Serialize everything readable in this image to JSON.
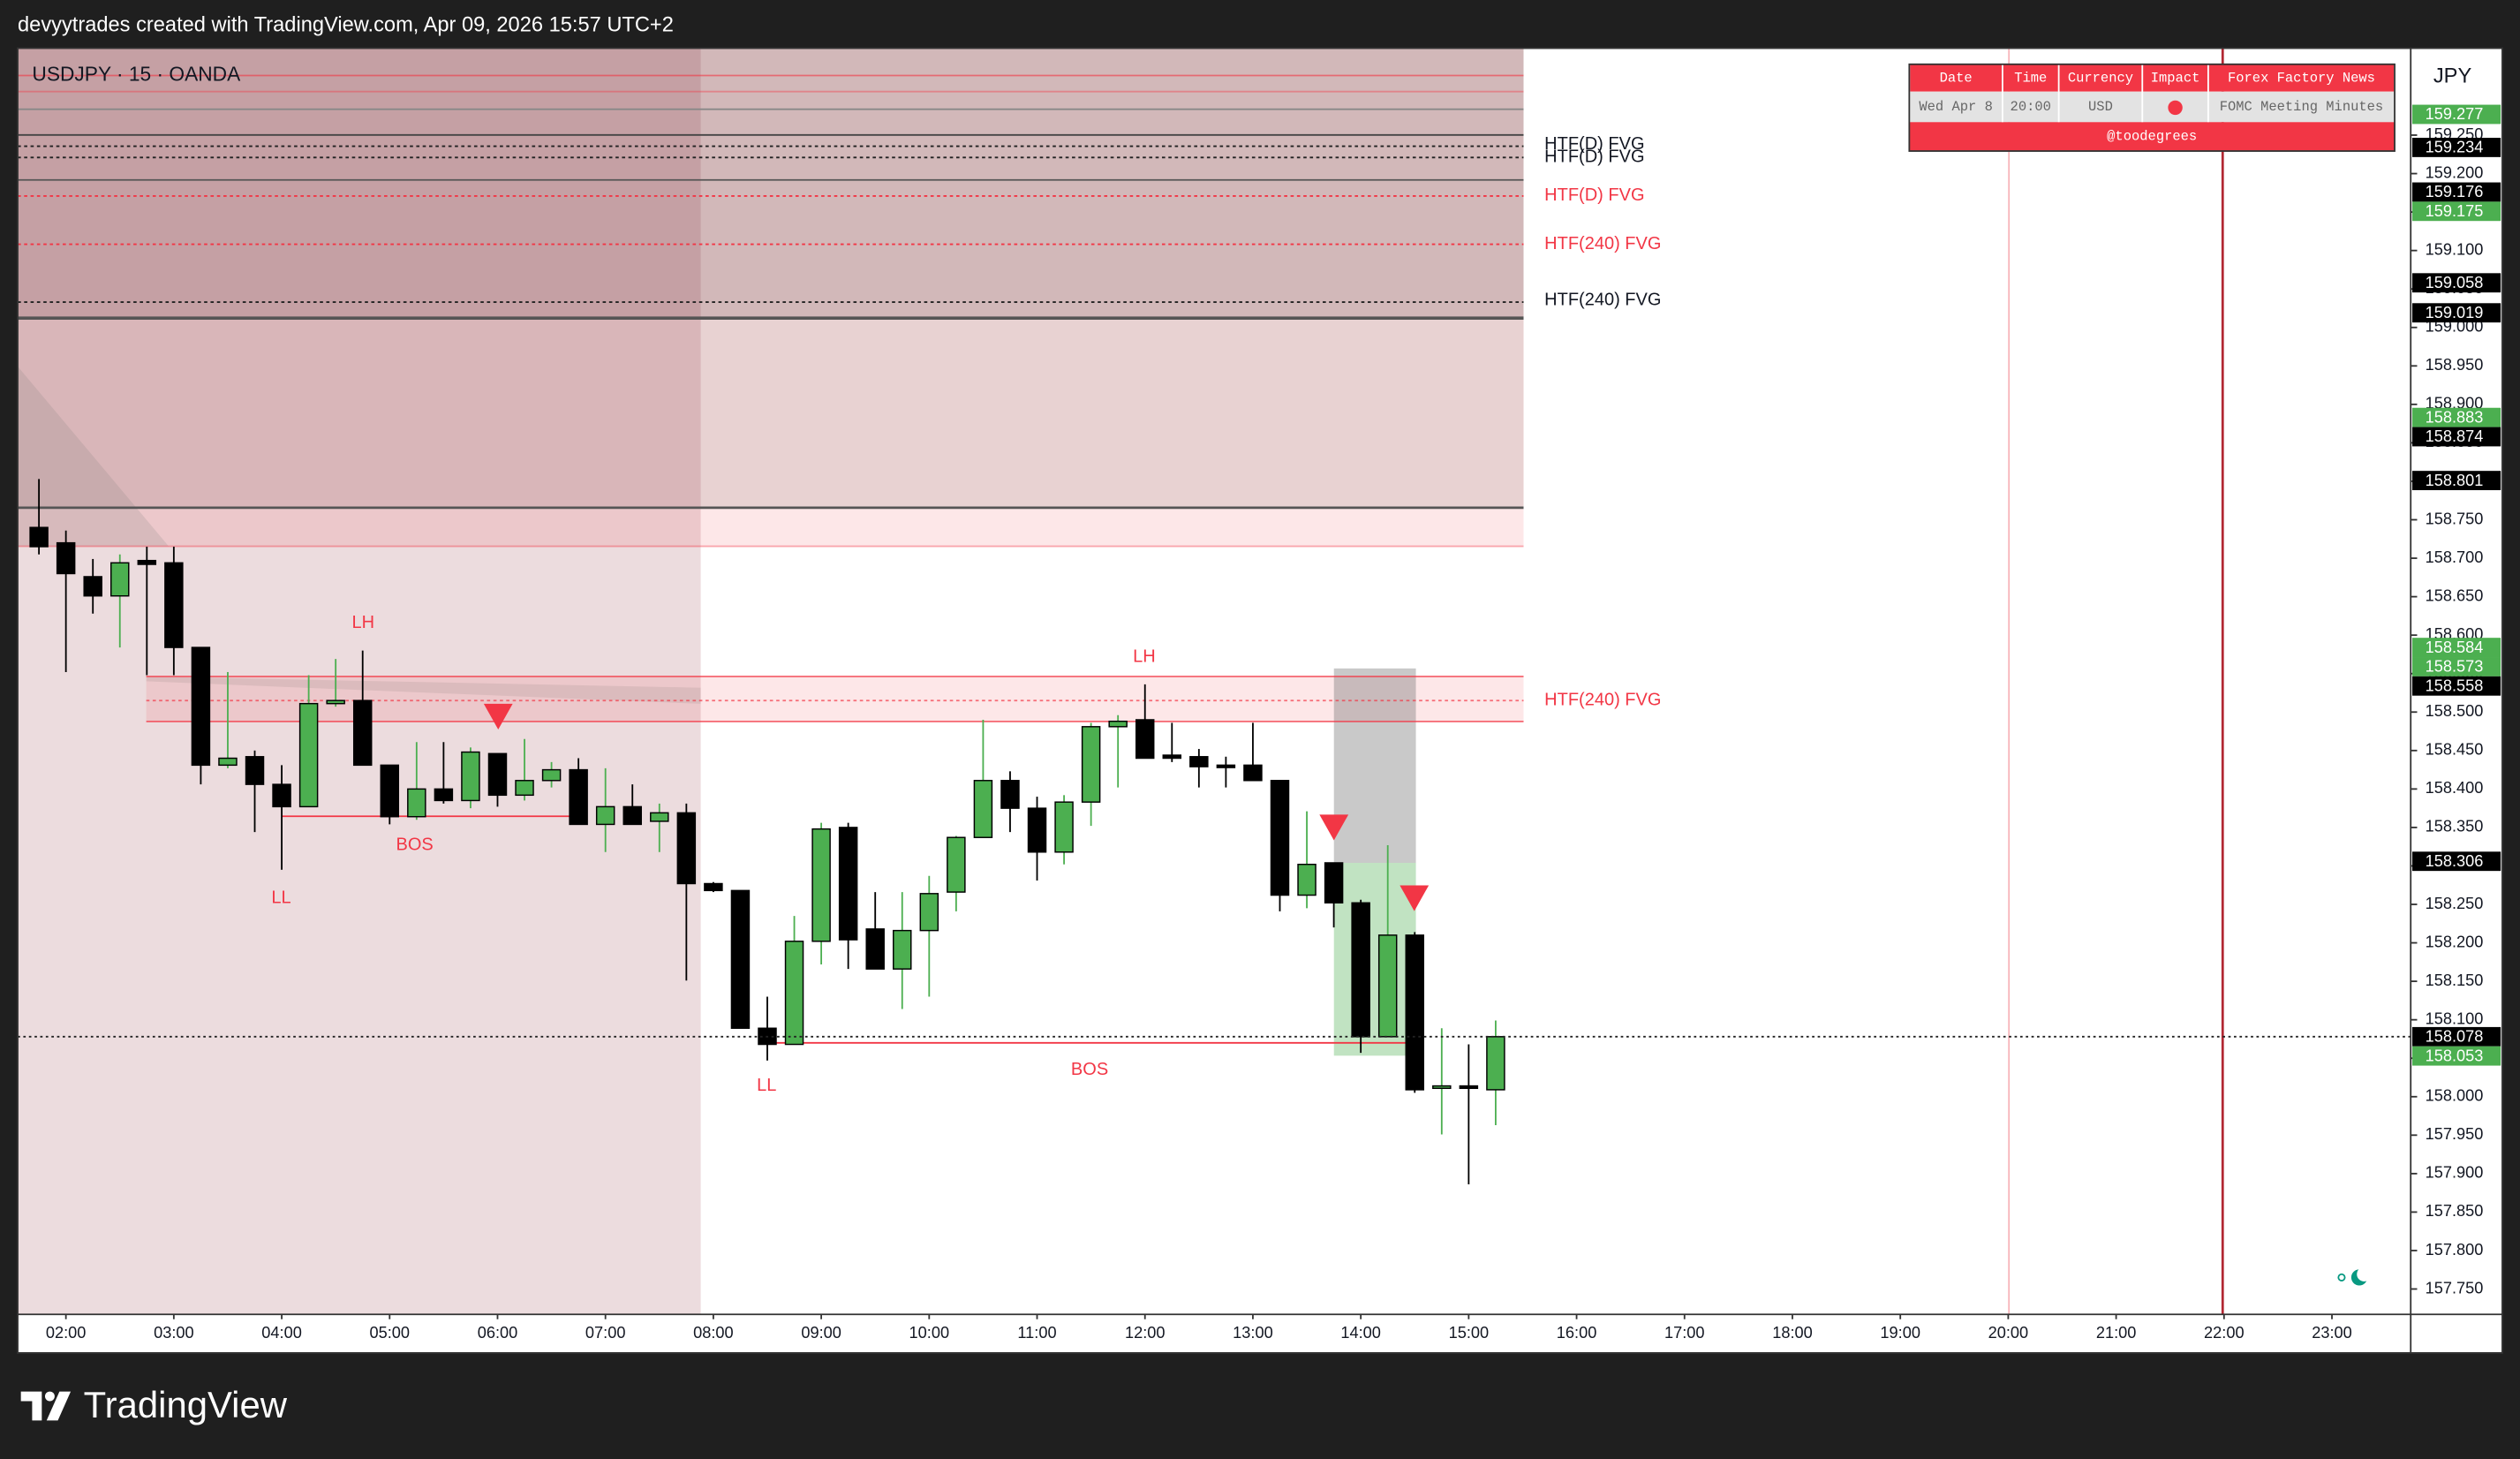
{
  "chart_data": {
    "type": "candlestick",
    "header": "devyytrades created with TradingView.com, Apr 09, 2026 15:57 UTC+2",
    "title": "USDJPY · 15 · OANDA",
    "currency": "JPY",
    "brand": "TradingView",
    "up_color": "#4caf50",
    "down_color": "#000000",
    "grid": false,
    "x": [
      1.75,
      2,
      2.25,
      2.5,
      2.75,
      3,
      3.25,
      3.5,
      3.75,
      4,
      4.25,
      4.5,
      4.75,
      5,
      5.25,
      5.5,
      5.75,
      6,
      6.25,
      6.5,
      6.75,
      7,
      7.25,
      7.5,
      7.75,
      8,
      8.25,
      8.5,
      8.75,
      9,
      9.25,
      9.5,
      9.75,
      10,
      10.25,
      10.5,
      10.75,
      11,
      11.25,
      11.5,
      11.75,
      12,
      12.25,
      12.5,
      12.75,
      13,
      13.25,
      13.5,
      13.75,
      14,
      14.25,
      14.5,
      14.75,
      15,
      15.25
    ],
    "open": [
      158.74,
      158.72,
      158.676,
      158.651,
      158.697,
      158.694,
      158.584,
      158.431,
      158.442,
      158.406,
      158.377,
      158.511,
      158.515,
      158.431,
      158.364,
      158.4,
      158.385,
      158.446,
      158.392,
      158.411,
      158.425,
      158.354,
      158.377,
      158.358,
      158.369,
      158.277,
      158.268,
      158.089,
      158.068,
      158.202,
      158.35,
      158.218,
      158.166,
      158.216,
      158.266,
      158.337,
      158.411,
      158.375,
      158.318,
      158.383,
      158.481,
      158.49,
      158.444,
      158.442,
      158.431,
      158.431,
      158.411,
      158.262,
      158.304,
      158.252,
      158.078,
      158.21,
      158.011,
      158.014,
      158.009
    ],
    "high": [
      158.803,
      158.736,
      158.699,
      158.705,
      158.715,
      158.715,
      158.584,
      158.552,
      158.45,
      158.431,
      158.548,
      158.569,
      158.58,
      158.431,
      158.461,
      158.461,
      158.454,
      158.446,
      158.465,
      158.435,
      158.44,
      158.427,
      158.406,
      158.381,
      158.381,
      158.279,
      158.268,
      158.13,
      158.235,
      158.356,
      158.356,
      158.266,
      158.266,
      158.287,
      158.339,
      158.49,
      158.423,
      158.39,
      158.392,
      158.486,
      158.496,
      158.536,
      158.486,
      158.452,
      158.442,
      158.486,
      158.411,
      158.371,
      158.304,
      158.256,
      158.327,
      158.214,
      158.089,
      158.068,
      158.099
    ],
    "low": [
      158.705,
      158.552,
      158.628,
      158.584,
      158.548,
      158.548,
      158.406,
      158.427,
      158.344,
      158.295,
      158.377,
      158.507,
      158.431,
      158.354,
      158.36,
      158.381,
      158.375,
      158.377,
      158.385,
      158.402,
      158.354,
      158.318,
      158.354,
      158.318,
      158.151,
      158.266,
      158.089,
      158.047,
      158.068,
      158.172,
      158.166,
      158.166,
      158.114,
      158.13,
      158.241,
      158.337,
      158.344,
      158.281,
      158.302,
      158.352,
      158.402,
      158.44,
      158.435,
      158.402,
      158.402,
      158.411,
      158.241,
      158.245,
      158.22,
      158.057,
      158.078,
      158.005,
      157.951,
      157.886,
      157.963
    ],
    "close": [
      158.715,
      158.68,
      158.651,
      158.694,
      158.692,
      158.584,
      158.431,
      158.44,
      158.406,
      158.377,
      158.511,
      158.515,
      158.431,
      158.364,
      158.4,
      158.385,
      158.448,
      158.392,
      158.411,
      158.425,
      158.354,
      158.377,
      158.354,
      158.369,
      158.277,
      158.268,
      158.089,
      158.068,
      158.202,
      158.348,
      158.204,
      158.166,
      158.216,
      158.264,
      158.337,
      158.411,
      158.375,
      158.318,
      158.383,
      158.481,
      158.488,
      158.44,
      158.44,
      158.429,
      158.429,
      158.411,
      158.262,
      158.302,
      158.252,
      158.078,
      158.21,
      158.009,
      158.014,
      158.011,
      158.078
    ],
    "xlim": [
      1.553,
      23.73
    ],
    "ylim": [
      157.717,
      159.363
    ],
    "xticks": [
      {
        "value": 2,
        "label": "02:00"
      },
      {
        "value": 3,
        "label": "03:00"
      },
      {
        "value": 4,
        "label": "04:00"
      },
      {
        "value": 5,
        "label": "05:00"
      },
      {
        "value": 6,
        "label": "06:00"
      },
      {
        "value": 7,
        "label": "07:00"
      },
      {
        "value": 8,
        "label": "08:00"
      },
      {
        "value": 9,
        "label": "09:00"
      },
      {
        "value": 10,
        "label": "10:00"
      },
      {
        "value": 11,
        "label": "11:00"
      },
      {
        "value": 12,
        "label": "12:00"
      },
      {
        "value": 13,
        "label": "13:00"
      },
      {
        "value": 14,
        "label": "14:00"
      },
      {
        "value": 15,
        "label": "15:00"
      },
      {
        "value": 16,
        "label": "16:00"
      },
      {
        "value": 17,
        "label": "17:00"
      },
      {
        "value": 18,
        "label": "18:00"
      },
      {
        "value": 19,
        "label": "19:00"
      },
      {
        "value": 20,
        "label": "20:00"
      },
      {
        "value": 21,
        "label": "21:00"
      },
      {
        "value": 22,
        "label": "22:00"
      },
      {
        "value": 23,
        "label": "23:00"
      }
    ],
    "yticks": [
      {
        "value": 159.25,
        "label": "159.250"
      },
      {
        "value": 159.2,
        "label": "159.200"
      },
      {
        "value": 159.15,
        "label": "159.150"
      },
      {
        "value": 159.1,
        "label": "159.100"
      },
      {
        "value": 159.05,
        "label": "159.050"
      },
      {
        "value": 159,
        "label": "159.000"
      },
      {
        "value": 158.95,
        "label": "158.950"
      },
      {
        "value": 158.9,
        "label": "158.900"
      },
      {
        "value": 158.85,
        "label": "158.850"
      },
      {
        "value": 158.8,
        "label": "158.800"
      },
      {
        "value": 158.75,
        "label": "158.750"
      },
      {
        "value": 158.7,
        "label": "158.700"
      },
      {
        "value": 158.65,
        "label": "158.650"
      },
      {
        "value": 158.6,
        "label": "158.600"
      },
      {
        "value": 158.55,
        "label": "158.550"
      },
      {
        "value": 158.5,
        "label": "158.500"
      },
      {
        "value": 158.45,
        "label": "158.450"
      },
      {
        "value": 158.4,
        "label": "158.400"
      },
      {
        "value": 158.35,
        "label": "158.350"
      },
      {
        "value": 158.3,
        "label": "158.300"
      },
      {
        "value": 158.25,
        "label": "158.250"
      },
      {
        "value": 158.2,
        "label": "158.200"
      },
      {
        "value": 158.15,
        "label": "158.150"
      },
      {
        "value": 158.1,
        "label": "158.100"
      },
      {
        "value": 158.05,
        "label": "158.050"
      },
      {
        "value": 158,
        "label": "158.000"
      },
      {
        "value": 157.95,
        "label": "157.950"
      },
      {
        "value": 157.9,
        "label": "157.900"
      },
      {
        "value": 157.85,
        "label": "157.850"
      },
      {
        "value": 157.8,
        "label": "157.800"
      },
      {
        "value": 157.75,
        "label": "157.750"
      }
    ],
    "price_labels": [
      {
        "value": 159.277,
        "color": "#4caf50"
      },
      {
        "value": 159.234,
        "color": "#000000"
      },
      {
        "value": 159.176,
        "color": "#000000"
      },
      {
        "value": 159.175,
        "color": "#4caf50"
      },
      {
        "value": 159.058,
        "color": "#000000"
      },
      {
        "value": 159.019,
        "color": "#000000"
      },
      {
        "value": 158.883,
        "color": "#4caf50"
      },
      {
        "value": 158.874,
        "color": "#000000"
      },
      {
        "value": 158.801,
        "color": "#000000"
      },
      {
        "value": 158.584,
        "color": "#4caf50"
      },
      {
        "value": 158.573,
        "color": "#4caf50"
      },
      {
        "value": 158.558,
        "color": "#000000"
      },
      {
        "value": 158.306,
        "color": "#000000"
      },
      {
        "value": 158.078,
        "color": "#000000"
      },
      {
        "value": 158.053,
        "color": "#4caf50"
      }
    ],
    "annotations": [
      "LH",
      "LL",
      "BOS",
      "LH",
      "LL",
      "BOS",
      "HTF(D) FVG",
      "HTF(D) FVG",
      "HTF(D) FVG",
      "HTF(240) FVG",
      "HTF(240) FVG",
      "HTF(240) FVG"
    ],
    "news_table": {
      "headers": [
        "Date",
        "Time",
        "Currency",
        "Impact",
        "Forex Factory News"
      ],
      "row": [
        "Wed Apr 8",
        "20:00",
        "USD",
        "FOMC Meeting Minutes"
      ],
      "footer": "@toodegrees"
    }
  }
}
